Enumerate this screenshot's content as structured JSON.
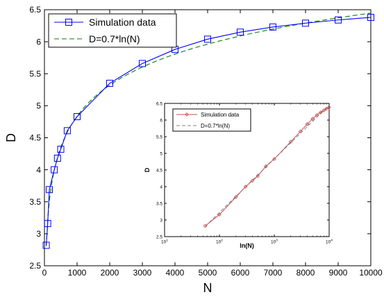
{
  "chart_data": [
    {
      "type": "line",
      "title": "",
      "xlabel": "N",
      "ylabel": "D",
      "xlim": [
        0,
        10000
      ],
      "ylim": [
        2.5,
        6.5
      ],
      "x_ticks": [
        "0",
        "1000",
        "2000",
        "3000",
        "4000",
        "5000",
        "6000",
        "7000",
        "8000",
        "9000",
        "10000"
      ],
      "y_ticks": [
        "2.5",
        "3",
        "3.5",
        "4",
        "4.5",
        "5",
        "5.5",
        "6",
        "6.5"
      ],
      "grid": false,
      "legend_position": "top-left",
      "series": [
        {
          "name": "Simulation data",
          "color": "#0000ff",
          "style": "solid",
          "marker": "square",
          "x": [
            55,
            100,
            150,
            300,
            400,
            500,
            700,
            1000,
            2000,
            3000,
            4000,
            5000,
            6000,
            7000,
            8000,
            9000,
            10000
          ],
          "y": [
            2.82,
            3.16,
            3.69,
            4.0,
            4.18,
            4.32,
            4.61,
            4.83,
            5.35,
            5.66,
            5.88,
            6.04,
            6.15,
            6.23,
            6.29,
            6.34,
            6.38
          ]
        },
        {
          "name": "D=0.7*ln(N)",
          "color": "#008000",
          "style": "dashed",
          "function": "0.7*ln(N)",
          "x_range": [
            55,
            10000
          ]
        }
      ]
    },
    {
      "type": "line",
      "title": "",
      "xlabel": "ln(N)",
      "ylabel": "D",
      "xscale": "log",
      "xlim": [
        10,
        10000
      ],
      "ylim": [
        2.5,
        6.5
      ],
      "x_ticks": [
        "10^1",
        "10^2",
        "10^3",
        "10^4"
      ],
      "y_ticks": [
        "2.5",
        "3",
        "3.5",
        "4",
        "4.5",
        "5",
        "5.5",
        "6",
        "6.5"
      ],
      "grid": false,
      "legend_position": "top-left",
      "series": [
        {
          "name": "Simulation data",
          "color": "#c05050",
          "style": "solid",
          "marker": "diamond",
          "x": [
            55,
            100,
            200,
            300,
            400,
            500,
            700,
            1000,
            2000,
            3000,
            4000,
            5000,
            6000,
            7000,
            8000,
            9000,
            10000
          ],
          "y": [
            2.82,
            3.16,
            3.69,
            4.0,
            4.18,
            4.32,
            4.61,
            4.83,
            5.35,
            5.66,
            5.88,
            6.04,
            6.15,
            6.23,
            6.29,
            6.34,
            6.38
          ]
        },
        {
          "name": "D=0.7*ln(N)",
          "color": "#808080",
          "style": "dashed",
          "function": "0.7*ln(N)",
          "x_range": [
            55,
            10000
          ]
        }
      ]
    }
  ]
}
